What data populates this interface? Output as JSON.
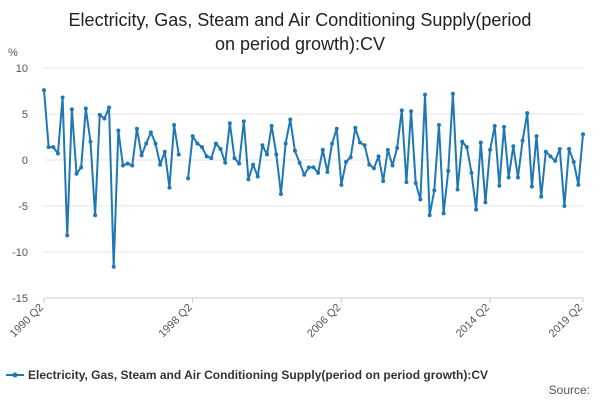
{
  "chart_data": {
    "type": "line",
    "title_lines": [
      "Electricity, Gas, Steam and Air Conditioning Supply(period",
      "on period growth):CV"
    ],
    "ylabel": "%",
    "xlabel": "",
    "ylim": [
      -15,
      10
    ],
    "y_ticks": [
      10,
      5,
      0,
      -5,
      -10,
      -15
    ],
    "x_ticks": [
      {
        "index": 0,
        "label": "1990 Q2"
      },
      {
        "index": 32,
        "label": "1998 Q2"
      },
      {
        "index": 64,
        "label": "2006 Q2"
      },
      {
        "index": 96,
        "label": "2014 Q2"
      },
      {
        "index": 116,
        "label": "2019 Q2"
      }
    ],
    "grid": true,
    "legend_position": "bottom",
    "source": "Source:",
    "colors": {
      "series": "#1f78b4",
      "grid": "#e6e6e6",
      "axis": "#cccccc"
    },
    "series": [
      {
        "name": "Electricity, Gas, Steam and Air Conditioning Supply(period on period growth):CV",
        "values": [
          7.6,
          1.4,
          1.4,
          0.7,
          6.8,
          -8.2,
          5.5,
          -1.5,
          -0.8,
          5.6,
          2.0,
          -6.0,
          4.9,
          4.5,
          5.7,
          -11.6,
          3.2,
          -0.6,
          -0.4,
          -0.6,
          3.4,
          0.5,
          1.8,
          3.0,
          1.8,
          -0.5,
          0.9,
          -3.0,
          3.8,
          0.6,
          null,
          -2.0,
          2.6,
          1.8,
          1.4,
          0.4,
          0.2,
          1.8,
          1.2,
          -0.3,
          4.0,
          0.2,
          -0.4,
          4.2,
          -2.1,
          -0.5,
          -1.8,
          1.6,
          0.6,
          3.7,
          0.6,
          -3.7,
          1.8,
          4.4,
          1.0,
          -0.3,
          -1.6,
          -0.8,
          -0.8,
          -1.4,
          1.1,
          -1.3,
          1.8,
          3.4,
          -2.7,
          -0.2,
          0.3,
          3.5,
          1.9,
          1.6,
          -0.5,
          -0.9,
          0.4,
          -2.3,
          1.1,
          -0.6,
          1.3,
          5.4,
          -2.4,
          5.3,
          -2.5,
          -4.3,
          7.1,
          -6.0,
          -3.3,
          3.8,
          -5.8,
          -1.2,
          7.2,
          -3.2,
          2.0,
          1.4,
          -1.4,
          -5.4,
          1.9,
          -4.6,
          1.1,
          3.7,
          -2.8,
          3.6,
          -1.9,
          1.5,
          -1.9,
          2.1,
          5.1,
          -2.9,
          2.6,
          -4.0,
          0.9,
          0.4,
          -0.1,
          1.2,
          -5.0,
          1.2,
          -0.2,
          -2.7,
          2.8
        ]
      }
    ]
  }
}
